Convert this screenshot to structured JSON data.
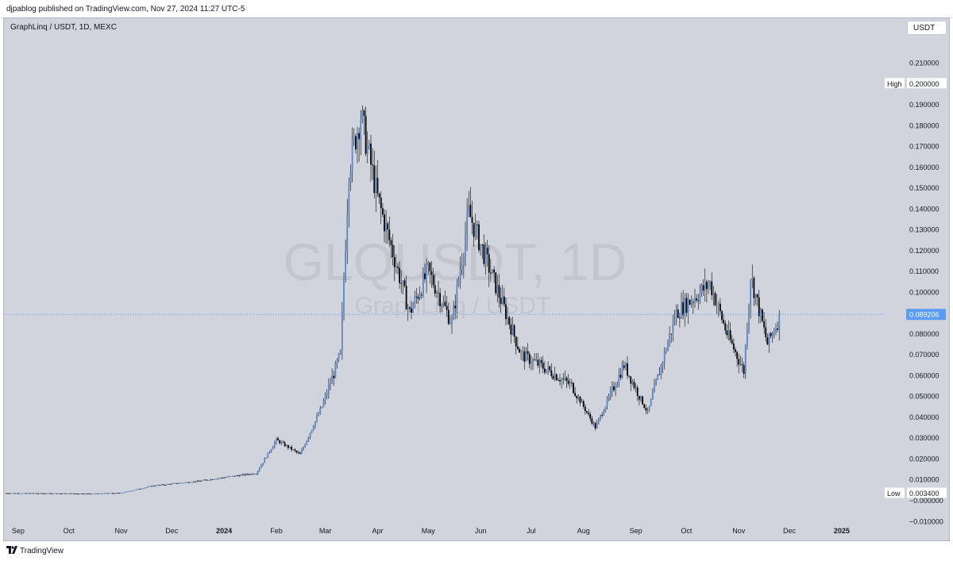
{
  "header": {
    "publisher_line": "djpablog published on TradingView.com, Nov 27, 2024 11:27 UTC-5"
  },
  "legend": {
    "symbol_line": "GraphLinq / USDT, 1D, MEXC"
  },
  "watermark": {
    "ticker": "GLQUSDT, 1D",
    "name": "GraphLinq / USDT"
  },
  "controls": {
    "currency_button": "USDT"
  },
  "footer": {
    "brand": "TradingView",
    "icon": "tradingview-logo-icon"
  },
  "colors": {
    "background": "#d1d4dc",
    "up_candle": "#5b86c7",
    "down_candle": "#000000",
    "price_label": "#5b9cf6",
    "high_low_label_bg": "#ffffff"
  },
  "chart_data": {
    "type": "candlestick",
    "title": "GraphLinq / USDT, 1D, MEXC",
    "ylim": [
      -0.0175,
      0.22
    ],
    "y_ticks": [
      "0.210000",
      "0.190000",
      "0.180000",
      "0.170000",
      "0.160000",
      "0.150000",
      "0.140000",
      "0.130000",
      "0.120000",
      "0.110000",
      "0.100000",
      "0.080000",
      "0.070000",
      "0.060000",
      "0.050000",
      "0.040000",
      "0.030000",
      "0.020000",
      "0.010000",
      "−0.000000",
      "−0.010000"
    ],
    "x_ticks": [
      "Sep",
      "Oct",
      "Nov",
      "Dec",
      "2024",
      "Feb",
      "Mar",
      "Apr",
      "May",
      "Jun",
      "Jul",
      "Aug",
      "Sep",
      "Oct",
      "Nov",
      "Dec",
      "2025"
    ],
    "x_tick_bold": [
      "2024",
      "2025"
    ],
    "last_price": 0.089206,
    "last_price_label": "0.089206",
    "high": {
      "label": "High",
      "value_label": "0.200000",
      "value": 0.2
    },
    "low": {
      "label": "Low",
      "value_label": "0.003400",
      "value": 0.0034
    },
    "close_series_approx": [
      {
        "date": "2023-08-25",
        "close": 0.0034
      },
      {
        "date": "2023-10-15",
        "close": 0.0032
      },
      {
        "date": "2023-11-01",
        "close": 0.0035
      },
      {
        "date": "2023-11-20",
        "close": 0.007
      },
      {
        "date": "2023-12-15",
        "close": 0.009
      },
      {
        "date": "2024-01-01",
        "close": 0.011
      },
      {
        "date": "2024-01-20",
        "close": 0.013
      },
      {
        "date": "2024-02-01",
        "close": 0.029
      },
      {
        "date": "2024-02-15",
        "close": 0.022
      },
      {
        "date": "2024-02-28",
        "close": 0.045
      },
      {
        "date": "2024-03-10",
        "close": 0.07
      },
      {
        "date": "2024-03-15",
        "close": 0.16
      },
      {
        "date": "2024-03-22",
        "close": 0.185
      },
      {
        "date": "2024-04-01",
        "close": 0.145
      },
      {
        "date": "2024-04-20",
        "close": 0.09
      },
      {
        "date": "2024-05-01",
        "close": 0.11
      },
      {
        "date": "2024-05-15",
        "close": 0.085
      },
      {
        "date": "2024-05-25",
        "close": 0.138
      },
      {
        "date": "2024-06-10",
        "close": 0.103
      },
      {
        "date": "2024-06-25",
        "close": 0.07
      },
      {
        "date": "2024-07-10",
        "close": 0.063
      },
      {
        "date": "2024-07-25",
        "close": 0.055
      },
      {
        "date": "2024-08-08",
        "close": 0.035
      },
      {
        "date": "2024-08-25",
        "close": 0.065
      },
      {
        "date": "2024-09-08",
        "close": 0.042
      },
      {
        "date": "2024-09-25",
        "close": 0.09
      },
      {
        "date": "2024-10-15",
        "close": 0.104
      },
      {
        "date": "2024-10-25",
        "close": 0.08
      },
      {
        "date": "2024-11-04",
        "close": 0.062
      },
      {
        "date": "2024-11-08",
        "close": 0.108
      },
      {
        "date": "2024-11-18",
        "close": 0.075
      },
      {
        "date": "2024-11-26",
        "close": 0.0892
      }
    ]
  }
}
